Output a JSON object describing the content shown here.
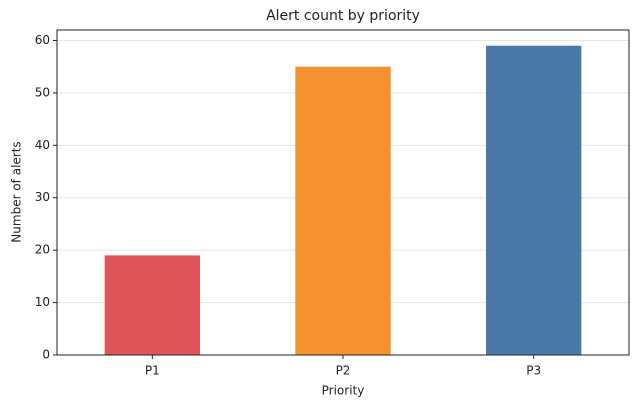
{
  "chart_data": {
    "type": "bar",
    "title": "Alert count by priority",
    "x_label": "Priority",
    "y_label": "Number of alerts",
    "categories": [
      "P1",
      "P2",
      "P3"
    ],
    "values": [
      19,
      55,
      59
    ],
    "colors": [
      "#e05559",
      "#f4912f",
      "#4a78a8"
    ],
    "ylim": [
      0,
      62
    ],
    "yticks": [
      0,
      10,
      20,
      30,
      40,
      50,
      60
    ],
    "grid": true
  }
}
